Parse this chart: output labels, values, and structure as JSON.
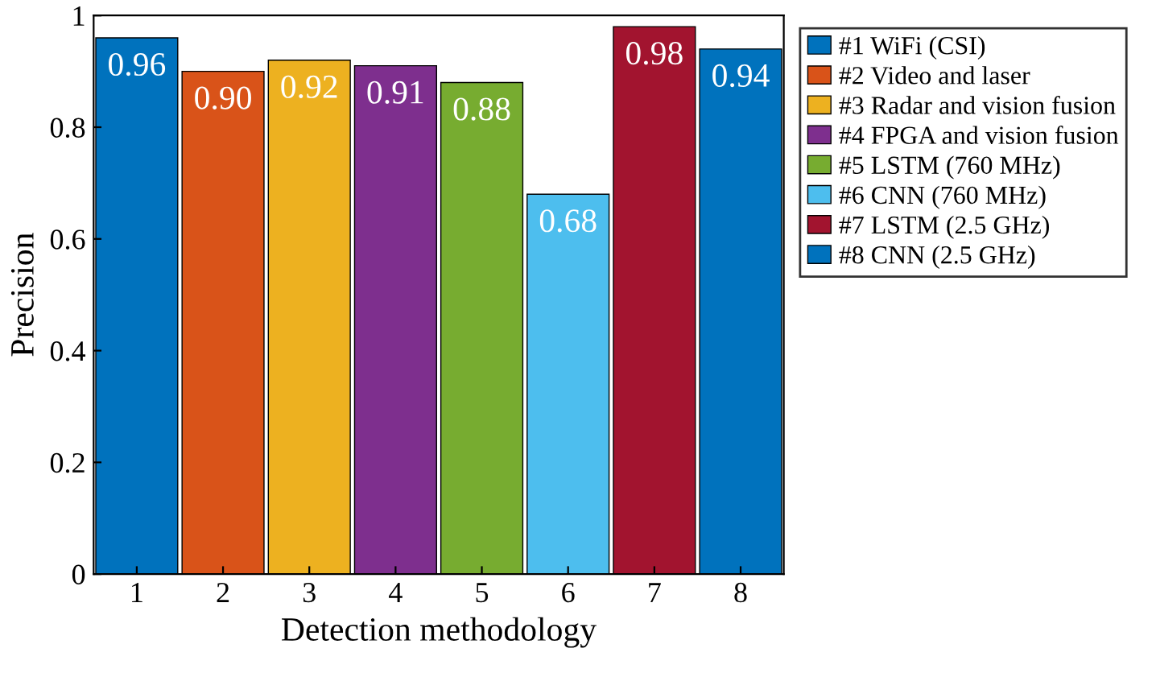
{
  "chart_data": {
    "type": "bar",
    "xlabel": "Detection methodology",
    "ylabel": "Precision",
    "categories": [
      "1",
      "2",
      "3",
      "4",
      "5",
      "6",
      "7",
      "8"
    ],
    "series": [
      {
        "name": "#1 WiFi (CSI)",
        "color": "#0072bd",
        "values": [
          0.96,
          null,
          null,
          null,
          null,
          null,
          null,
          null
        ],
        "value_labels": [
          "0.96",
          null,
          null,
          null,
          null,
          null,
          null,
          null
        ]
      },
      {
        "name": "#2 Video and laser",
        "color": "#d95319",
        "values": [
          null,
          0.9,
          null,
          null,
          null,
          null,
          null,
          null
        ],
        "value_labels": [
          null,
          "0.90",
          null,
          null,
          null,
          null,
          null,
          null
        ]
      },
      {
        "name": "#3 Radar and vision fusion",
        "color": "#edb120",
        "values": [
          null,
          null,
          0.92,
          null,
          null,
          null,
          null,
          null
        ],
        "value_labels": [
          null,
          null,
          "0.92",
          null,
          null,
          null,
          null,
          null
        ]
      },
      {
        "name": "#4 FPGA and vision fusion",
        "color": "#7e2f8e",
        "values": [
          null,
          null,
          null,
          0.91,
          null,
          null,
          null,
          null
        ],
        "value_labels": [
          null,
          null,
          null,
          "0.91",
          null,
          null,
          null,
          null
        ]
      },
      {
        "name": "#5 LSTM (760 MHz)",
        "color": "#77ac30",
        "values": [
          null,
          null,
          null,
          null,
          0.88,
          null,
          null,
          null
        ],
        "value_labels": [
          null,
          null,
          null,
          null,
          "0.88",
          null,
          null,
          null
        ]
      },
      {
        "name": "#6 CNN (760 MHz)",
        "color": "#4dbeee",
        "values": [
          null,
          null,
          null,
          null,
          null,
          0.68,
          null,
          null
        ],
        "value_labels": [
          null,
          null,
          null,
          null,
          null,
          "0.68",
          null,
          null
        ]
      },
      {
        "name": "#7 LSTM (2.5 GHz)",
        "color": "#a2142f",
        "values": [
          null,
          null,
          null,
          null,
          null,
          null,
          0.98,
          null
        ],
        "value_labels": [
          null,
          null,
          null,
          null,
          null,
          null,
          "0.98",
          null
        ]
      },
      {
        "name": "#8 CNN (2.5 GHz)",
        "color": "#0072bd",
        "values": [
          null,
          null,
          null,
          null,
          null,
          null,
          null,
          0.94
        ],
        "value_labels": [
          null,
          null,
          null,
          null,
          null,
          null,
          null,
          "0.94"
        ]
      }
    ],
    "ylim": [
      0,
      1
    ],
    "yticks": [
      0,
      0.2,
      0.4,
      0.6,
      0.8,
      1
    ],
    "grid": false,
    "legend": "top right"
  }
}
